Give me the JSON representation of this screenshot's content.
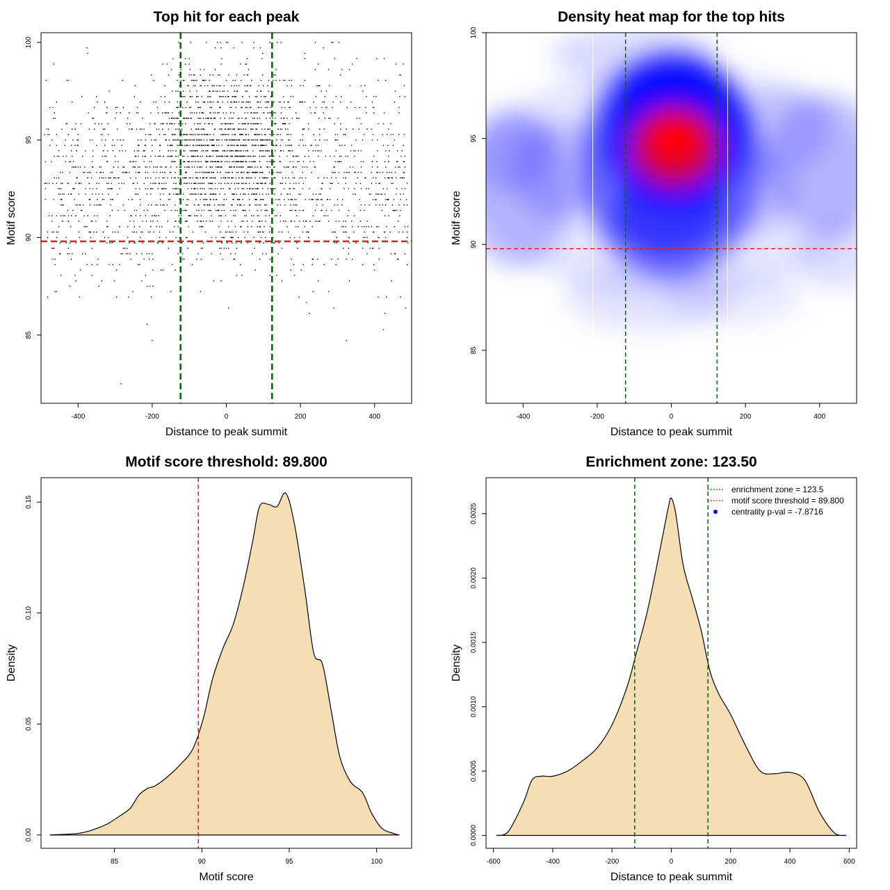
{
  "chart_data": [
    {
      "type": "scatter",
      "title": "Top hit for each peak",
      "xlabel": "Distance to peak summit",
      "ylabel": "Motif score",
      "xlim": [
        -500,
        500
      ],
      "ylim": [
        81.5,
        100.5
      ],
      "xticks": [
        -400,
        -200,
        0,
        200,
        400
      ],
      "yticks": [
        85,
        90,
        95,
        100
      ],
      "reference_lines": {
        "vertical": [
          -123.5,
          123.5
        ],
        "horizontal": [
          89.8
        ]
      },
      "colors": {
        "points": "#000000",
        "vlines": "#006400",
        "hline": "#e31a1c"
      },
      "points_note": "approx. 3000 points; score density peaks near 94-95 and distance density peaks near 0"
    },
    {
      "type": "heatmap",
      "title": "Density heat map for the top hits",
      "xlabel": "Distance to peak summit",
      "ylabel": "Motif score",
      "xlim": [
        -500,
        500
      ],
      "ylim": [
        82.5,
        100
      ],
      "xticks": [
        -400,
        -200,
        0,
        200,
        400
      ],
      "yticks": [
        85,
        90,
        95,
        100
      ],
      "reference_lines": {
        "vertical": [
          -123.5,
          123.5
        ],
        "horizontal": [
          89.8
        ]
      },
      "hotspot": {
        "x": 10,
        "y": 94.8
      },
      "color_scale": [
        "#ffffff",
        "#0000ff",
        "#ff0000"
      ],
      "colors": {
        "vlines": "#006400",
        "hline": "#e31a1c"
      }
    },
    {
      "type": "area",
      "title": "Motif score threshold: 89.800",
      "xlabel": "Motif score",
      "ylabel": "Density",
      "xlim": [
        80.8,
        102
      ],
      "ylim": [
        -0.006,
        0.161
      ],
      "xticks": [
        85,
        90,
        95,
        100
      ],
      "yticks": [
        0.0,
        0.05,
        0.1,
        0.15
      ],
      "ytick_labels": [
        "0.00",
        "0.05",
        "0.10",
        "0.15"
      ],
      "reference_lines": {
        "vertical": [
          89.8
        ]
      },
      "colors": {
        "fill": "#f5deb3",
        "line": "#000000",
        "vline": "#e31a1c"
      },
      "x": [
        81.3,
        83.0,
        84.0,
        84.6,
        85.2,
        85.9,
        86.4,
        86.9,
        87.3,
        88.0,
        88.8,
        89.5,
        90.1,
        90.6,
        91.2,
        91.8,
        92.4,
        92.9,
        93.3,
        93.8,
        94.3,
        94.8,
        95.3,
        95.9,
        96.4,
        96.9,
        97.4,
        97.9,
        98.5,
        99.2,
        99.7,
        100.3,
        101.0,
        101.3
      ],
      "y": [
        0.0,
        0.0008,
        0.003,
        0.005,
        0.008,
        0.012,
        0.018,
        0.021,
        0.022,
        0.026,
        0.032,
        0.039,
        0.053,
        0.07,
        0.084,
        0.095,
        0.113,
        0.132,
        0.148,
        0.149,
        0.148,
        0.154,
        0.14,
        0.11,
        0.082,
        0.077,
        0.056,
        0.035,
        0.024,
        0.019,
        0.01,
        0.003,
        0.0006,
        0.0
      ]
    },
    {
      "type": "area",
      "title": "Enrichment zone: 123.50",
      "xlabel": "Distance to peak summit",
      "ylabel": "Density",
      "xlim": [
        -625,
        625
      ],
      "ylim": [
        -0.0001,
        0.00278
      ],
      "xticks": [
        -600,
        -400,
        -200,
        0,
        200,
        400,
        600
      ],
      "yticks": [
        0.0,
        0.0005,
        0.001,
        0.0015,
        0.002,
        0.0025
      ],
      "ytick_labels": [
        "0.0000",
        "0.0005",
        "0.0010",
        "0.0015",
        "0.0020",
        "0.0025"
      ],
      "reference_lines": {
        "vertical": [
          -123.5,
          123.5
        ]
      },
      "colors": {
        "fill": "#f5deb3",
        "line": "#000000",
        "vline": "#006400"
      },
      "x": [
        -590,
        -550,
        -500,
        -470,
        -440,
        -400,
        -350,
        -300,
        -250,
        -200,
        -150,
        -120,
        -80,
        -40,
        -10,
        0,
        15,
        40,
        70,
        100,
        130,
        160,
        200,
        250,
        300,
        350,
        400,
        450,
        500,
        550,
        590
      ],
      "y": [
        0.0,
        3e-05,
        0.00025,
        0.00043,
        0.00046,
        0.00046,
        0.0005,
        0.00058,
        0.00068,
        0.00086,
        0.00115,
        0.0014,
        0.00175,
        0.0022,
        0.00255,
        0.00262,
        0.0025,
        0.0021,
        0.00185,
        0.0016,
        0.00128,
        0.0011,
        0.00094,
        0.0007,
        0.0005,
        0.00048,
        0.00049,
        0.00043,
        0.00018,
        2e-05,
        0.0
      ],
      "legend": {
        "placement": "top-right",
        "entries": [
          {
            "label": "enrichment zone = 123.5",
            "style": "dotted-line",
            "color": "#006400"
          },
          {
            "label": "motif score threshold = 89.800",
            "style": "dotted-line",
            "color": "#e31a1c"
          },
          {
            "label": "centrality p-val = -7.8716",
            "style": "point",
            "color": "#0000ff"
          }
        ]
      }
    }
  ]
}
